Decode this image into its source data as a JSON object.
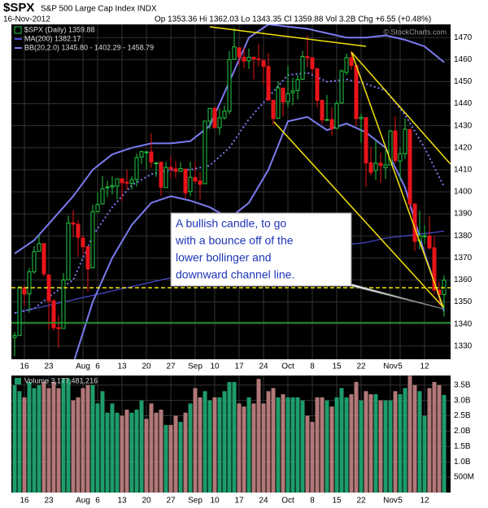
{
  "header": {
    "symbol": "$SPX",
    "name": "S&P 500 Large Cap Index INDX",
    "date": "16-Nov-2012",
    "quote": "Op 1353.36 Hi 1362.03 Lo 1343.35 Cl 1359.88 Vol 3.2B Chg +6.55 (+0.48%)",
    "watermark": "© StockCharts.com"
  },
  "annotation": [
    "A bullish candle, to go",
    "with a bounce off of the",
    "lower bollinger and",
    "downward channel line."
  ],
  "chart_data": [
    {
      "type": "candlestick",
      "name": "$SPX (Daily) 1359.88",
      "categories": [
        null,
        null,
        "16",
        null,
        null,
        null,
        null,
        "23",
        null,
        null,
        null,
        null,
        null,
        null,
        "Aug",
        null,
        null,
        "6",
        null,
        null,
        null,
        null,
        "13",
        null,
        null,
        null,
        null,
        "20",
        null,
        null,
        null,
        null,
        "27",
        null,
        null,
        null,
        null,
        "Sep",
        null,
        null,
        null,
        "10",
        null,
        null,
        null,
        null,
        "17",
        null,
        null,
        null,
        null,
        "24",
        null,
        null,
        null,
        null,
        "Oct",
        null,
        null,
        null,
        null,
        "8",
        null,
        null,
        null,
        null,
        "15",
        null,
        null,
        null,
        null,
        "22",
        null,
        null,
        null,
        null,
        null,
        "Nov",
        null,
        "5",
        null,
        null,
        null,
        null,
        "12",
        null,
        null,
        null,
        null
      ],
      "open": [
        1333.9,
        1334.8,
        1356.5,
        1353.7,
        1363.7,
        1373.0,
        1376.5,
        1362.3,
        1350.5,
        1338.4,
        1338.0,
        1360.1,
        1385.9,
        1385.3,
        1379.0,
        1375.1,
        1365.5,
        1391.0,
        1394.5,
        1401.8,
        1402.2,
        1402.6,
        1405.9,
        1404.4,
        1403.9,
        1405.6,
        1415.8,
        1417.8,
        1418.1,
        1413.1,
        1413.5,
        1401.9,
        1411.1,
        1410.4,
        1409.3,
        1410.3,
        1400.1,
        1406.5,
        1404.9,
        1403.7,
        1432.1,
        1437.9,
        1429.1,
        1433.6,
        1436.6,
        1460.1,
        1465.4,
        1461.1,
        1459.5,
        1461.0,
        1460.3,
        1459.5,
        1456.9,
        1441.6,
        1433.4,
        1447.1,
        1440.9,
        1444.99,
        1446.0,
        1451.1,
        1461.4,
        1460.9,
        1455.9,
        1441.5,
        1432.8,
        1432.8,
        1428.8,
        1440.3,
        1454.2,
        1460.9,
        1457.3,
        1433.2,
        1433.7,
        1413.2,
        1409.7,
        1412.97,
        1410.99,
        1412.2,
        1427.6,
        1414.0,
        1417.3,
        1428.3,
        1394.5,
        1377.6,
        1379.9,
        1380.0,
        1374.6,
        1355.4,
        1353.36
      ],
      "high": [
        1336.4,
        1357.0,
        1357.3,
        1365.4,
        1375.3,
        1380.4,
        1376.5,
        1362.3,
        1351.3,
        1343.98,
        1363.1,
        1389.2,
        1391.7,
        1387.2,
        1380.4,
        1375.1,
        1394.2,
        1399.6,
        1407.1,
        1405.0,
        1407.1,
        1406.0,
        1406.0,
        1410.0,
        1407.0,
        1417.4,
        1418.7,
        1418.7,
        1426.7,
        1413.5,
        1413.5,
        1413.5,
        1416.2,
        1413.9,
        1413.5,
        1410.4,
        1413.7,
        1413.6,
        1408.8,
        1432.1,
        1437.9,
        1438.7,
        1437.8,
        1439.2,
        1463.8,
        1474.5,
        1465.6,
        1465.6,
        1465.0,
        1461.5,
        1467.1,
        1460.1,
        1463.1,
        1441.6,
        1450.2,
        1447.1,
        1457.1,
        1451.7,
        1453.1,
        1464.0,
        1470.96,
        1461.0,
        1455.9,
        1442.0,
        1443.9,
        1438.4,
        1441.3,
        1455.5,
        1462.8,
        1464.0,
        1457.3,
        1435.5,
        1433.7,
        1420.3,
        1423.3,
        1417.8,
        1418.8,
        1428.3,
        1434.3,
        1420.0,
        1433.4,
        1428.3,
        1394.5,
        1391.4,
        1384.9,
        1388.8,
        1380.1,
        1359.1,
        1362.03
      ],
      "low": [
        1325.4,
        1334.8,
        1348.3,
        1345.1,
        1362.9,
        1372.8,
        1361.6,
        1337.6,
        1337.0,
        1329.2,
        1338.0,
        1360.1,
        1379.4,
        1370.6,
        1371.4,
        1354.7,
        1365.5,
        1390.6,
        1394.5,
        1397.7,
        1398.8,
        1396.6,
        1395.7,
        1401.0,
        1401.0,
        1402.4,
        1412.5,
        1410.3,
        1410.9,
        1406.8,
        1398.0,
        1401.9,
        1406.0,
        1406.3,
        1409.3,
        1397.0,
        1398.0,
        1403.9,
        1396.6,
        1403.7,
        1428.5,
        1429.1,
        1426.0,
        1432.8,
        1435.3,
        1460.1,
        1457.5,
        1456.0,
        1455.8,
        1451.1,
        1456.9,
        1448.7,
        1441.6,
        1430.5,
        1433.3,
        1434.1,
        1438.4,
        1439.3,
        1441.9,
        1451.1,
        1456.6,
        1453.5,
        1438.4,
        1430.6,
        1432.8,
        1425.5,
        1428.6,
        1440.3,
        1453.0,
        1455.5,
        1429.9,
        1422.3,
        1402.2,
        1407.6,
        1405.5,
        1403.9,
        1405.9,
        1413.0,
        1412.9,
        1405.2,
        1414.9,
        1391.8,
        1373.0,
        1373.8,
        1376.4,
        1373.8,
        1353.5,
        1348.6,
        1343.35
      ],
      "close": [
        1334.8,
        1356.8,
        1353.6,
        1363.7,
        1372.8,
        1376.5,
        1362.7,
        1350.5,
        1338.3,
        1337.9,
        1360.0,
        1385.9,
        1385.3,
        1379.3,
        1375.1,
        1365.0,
        1390.9,
        1394.2,
        1401.4,
        1402.2,
        1402.8,
        1405.9,
        1404.1,
        1403.9,
        1405.5,
        1415.5,
        1418.2,
        1418.1,
        1413.5,
        1413.1,
        1402.1,
        1411.1,
        1410.4,
        1409.3,
        1410.5,
        1399.5,
        1406.6,
        1404.9,
        1403.4,
        1432.1,
        1437.9,
        1429.1,
        1433.6,
        1436.6,
        1460.0,
        1465.8,
        1461.2,
        1459.3,
        1461.1,
        1460.3,
        1460.2,
        1456.9,
        1441.6,
        1433.3,
        1447.2,
        1440.7,
        1444.5,
        1445.8,
        1451.0,
        1461.4,
        1460.9,
        1455.9,
        1441.5,
        1432.6,
        1432.8,
        1428.6,
        1440.1,
        1454.9,
        1460.9,
        1457.3,
        1433.2,
        1433.8,
        1413.1,
        1408.8,
        1413.0,
        1411.9,
        1412.2,
        1427.6,
        1414.2,
        1417.3,
        1428.4,
        1394.5,
        1377.5,
        1380.0,
        1380.0,
        1374.5,
        1355.5,
        1353.3,
        1359.88
      ],
      "up_color": "#22cc44",
      "down_color": "#e8141a",
      "body_fill": "#000000",
      "ylim": [
        1324,
        1476
      ],
      "yticks": [
        1330,
        1340,
        1350,
        1360,
        1370,
        1380,
        1390,
        1400,
        1410,
        1420,
        1430,
        1440,
        1450,
        1460,
        1470
      ],
      "grid": true,
      "overlays": [
        {
          "name": "MA(200) 1382.17",
          "color": "#4b4bd8",
          "x": [
            0,
            4,
            8,
            12,
            16,
            20,
            24,
            28,
            32,
            36,
            40,
            44,
            48,
            52,
            56,
            60,
            64,
            68,
            72,
            76,
            80,
            84,
            88
          ],
          "values": [
            1345,
            1347,
            1349,
            1351,
            1353,
            1355,
            1357,
            1359,
            1361,
            1362,
            1364,
            1366,
            1368,
            1370,
            1372,
            1373,
            1375,
            1376,
            1377,
            1379,
            1380,
            1381,
            1382.17
          ]
        },
        {
          "name": "BB(20,2.0) 1345.80 - 1402.29 - 1458.79",
          "color": "#7b7bf0",
          "x": [
            0,
            4,
            8,
            12,
            16,
            20,
            24,
            28,
            32,
            36,
            40,
            44,
            48,
            52,
            56,
            60,
            64,
            68,
            72,
            76,
            80,
            84,
            88
          ],
          "upper": [
            1372,
            1378,
            1388,
            1398,
            1410,
            1417,
            1420,
            1422,
            1422,
            1423,
            1430,
            1450,
            1470,
            1476,
            1475,
            1474,
            1472,
            1470,
            1470,
            1471,
            1469,
            1466,
            1458.79
          ],
          "middle": [
            1345,
            1347,
            1354,
            1360,
            1380,
            1393,
            1403,
            1408,
            1410,
            1410,
            1412,
            1420,
            1433,
            1443,
            1453,
            1454,
            1450,
            1451,
            1449,
            1446,
            1435,
            1420,
            1402.29
          ],
          "lower": [
            1318,
            1316,
            1320,
            1322,
            1350,
            1370,
            1385,
            1395,
            1398,
            1396,
            1393,
            1388,
            1395,
            1410,
            1432,
            1434,
            1428,
            1431,
            1427,
            1420,
            1402,
            1372,
            1345.8
          ]
        }
      ]
    },
    {
      "type": "volume",
      "title": "Volume 3,177,481,216",
      "values": [
        3.5,
        3.3,
        3.1,
        3.6,
        3.4,
        3.5,
        3.6,
        3.4,
        3.6,
        3.4,
        3.7,
        3.7,
        3.0,
        3.1,
        3.4,
        3.5,
        3.5,
        2.9,
        3.3,
        2.6,
        2.9,
        2.6,
        2.5,
        2.7,
        2.6,
        2.7,
        3.0,
        2.4,
        2.9,
        2.6,
        2.7,
        2.2,
        2.2,
        2.5,
        2.3,
        2.6,
        2.9,
        3.4,
        3.1,
        3.3,
        3.0,
        3.1,
        3.1,
        3.3,
        3.6,
        3.6,
        2.9,
        2.8,
        3.1,
        2.9,
        3.7,
        2.9,
        3.3,
        3.4,
        3.1,
        3.2,
        3.1,
        3.1,
        3.1,
        3.0,
        2.5,
        2.3,
        3.1,
        3.1,
        3.0,
        2.8,
        3.1,
        3.4,
        3.1,
        3.2,
        3.6,
        3.0,
        3.3,
        3.2,
        3.2,
        3.0,
        3.0,
        3.0,
        3.3,
        3.2,
        3.4,
        3.8,
        3.5,
        3.3,
        2.5,
        3.4,
        3.6,
        3.5,
        3.177
      ],
      "up_color": "#1e9c6c",
      "down_color": "#b27878",
      "ylim": [
        0,
        3.81
      ],
      "yticks": [
        {
          "value": 0.5,
          "label": "500M"
        },
        {
          "value": 1,
          "label": "1.0B"
        },
        {
          "value": 1.5,
          "label": "1.5B"
        },
        {
          "value": 2,
          "label": "2.0B"
        },
        {
          "value": 2.5,
          "label": "2.5B"
        },
        {
          "value": 3,
          "label": "3.0B"
        },
        {
          "value": 3.5,
          "label": "3.5B"
        }
      ],
      "grid": true
    }
  ]
}
